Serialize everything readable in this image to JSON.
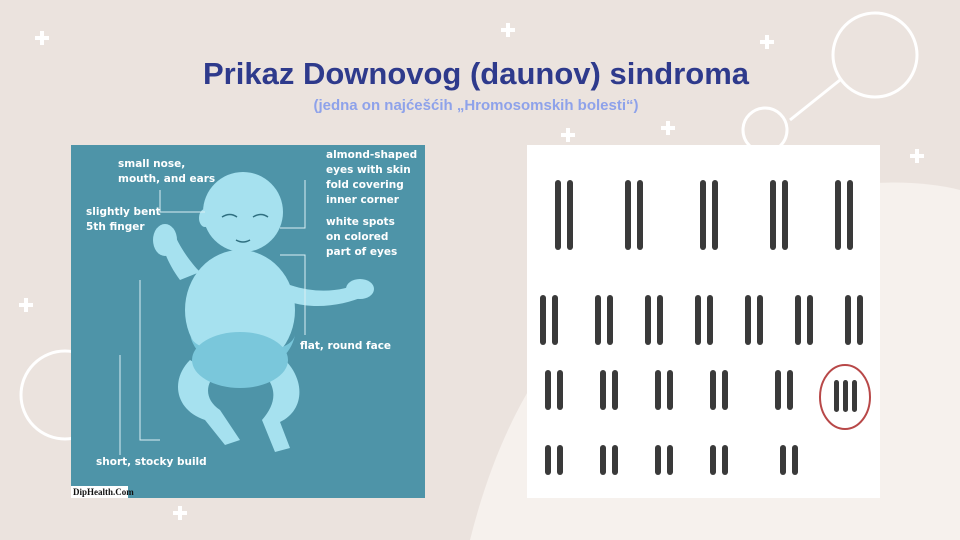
{
  "slide": {
    "title": "Prikaz Downovog (daunov) sindroma",
    "subtitle": "(jedna on najćešćih „Hromosomskih bolesti“)",
    "infographic": {
      "labels": [
        [
          "small nose,",
          "mouth, and ears"
        ],
        [
          "slightly bent",
          "5th finger"
        ],
        [
          "almond-shaped",
          "eyes with skin",
          "fold covering",
          "inner corner"
        ],
        [
          "white spots",
          "on colored",
          "part of eyes"
        ],
        [
          "flat, round face"
        ],
        [
          "short, stocky build"
        ]
      ],
      "credit": "DipHealth.Com"
    }
  }
}
